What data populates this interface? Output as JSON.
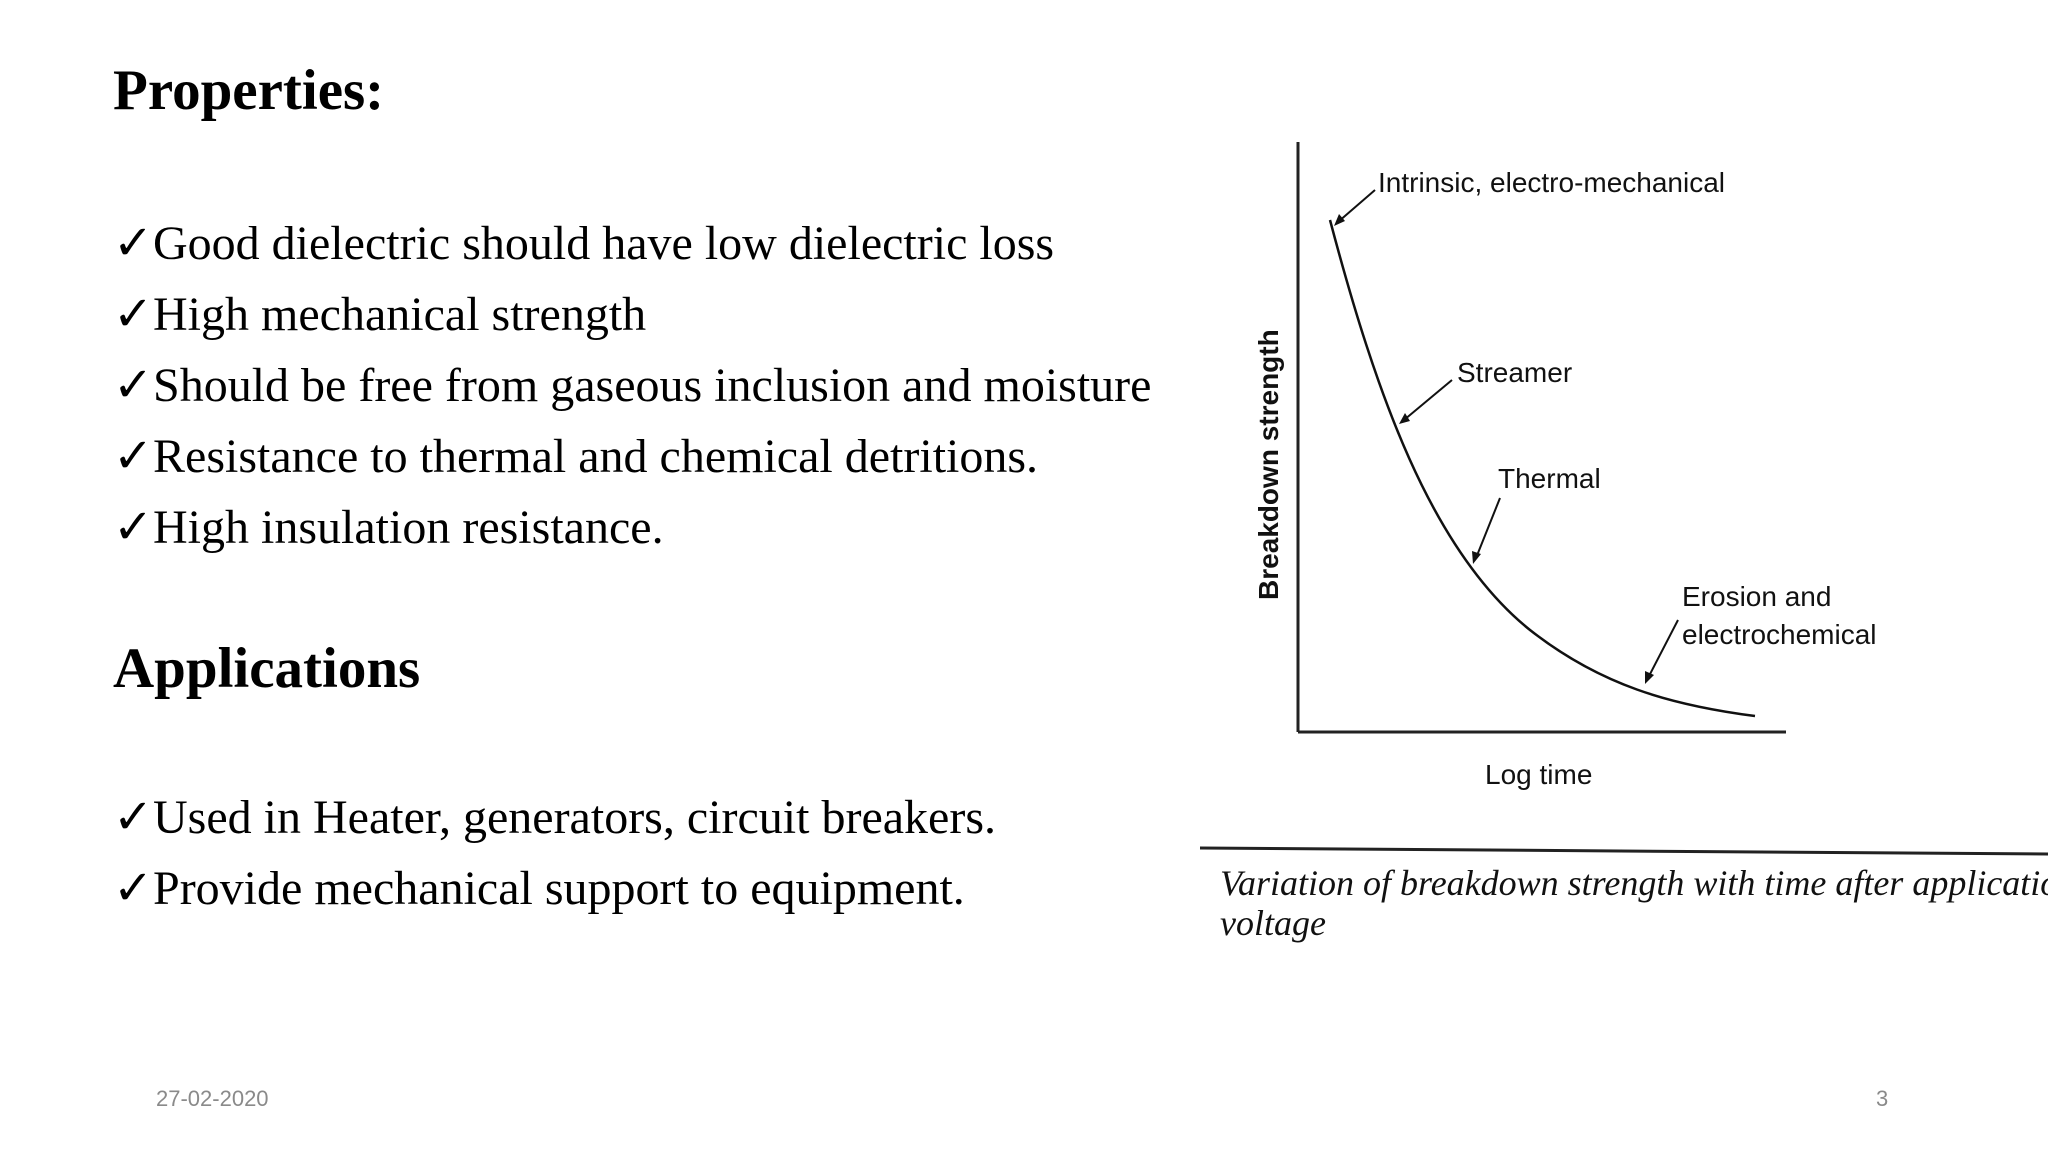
{
  "slide": {
    "properties_heading": "Properties:",
    "properties": [
      "Good dielectric should have low dielectric loss",
      "High mechanical strength",
      "Should be free from gaseous inclusion and moisture",
      "Resistance to thermal and chemical detritions.",
      "High insulation resistance."
    ],
    "applications_heading": "Applications",
    "applications": [
      "Used in Heater, generators, circuit breakers.",
      "Provide mechanical support to equipment."
    ],
    "check_glyph": "✓",
    "footer": {
      "date": "27-02-2020",
      "page_number": "3"
    }
  },
  "figure": {
    "y_axis_label": "Breakdown strength",
    "x_axis_label": "Log time",
    "curve_labels": {
      "intrinsic": "Intrinsic, electro-mechanical",
      "streamer": "Streamer",
      "thermal": "Thermal",
      "erosion_line1": "Erosion and",
      "erosion_line2": "electrochemical"
    },
    "caption_line1": "Variation of breakdown strength with time after application of",
    "caption_line2": "voltage"
  }
}
